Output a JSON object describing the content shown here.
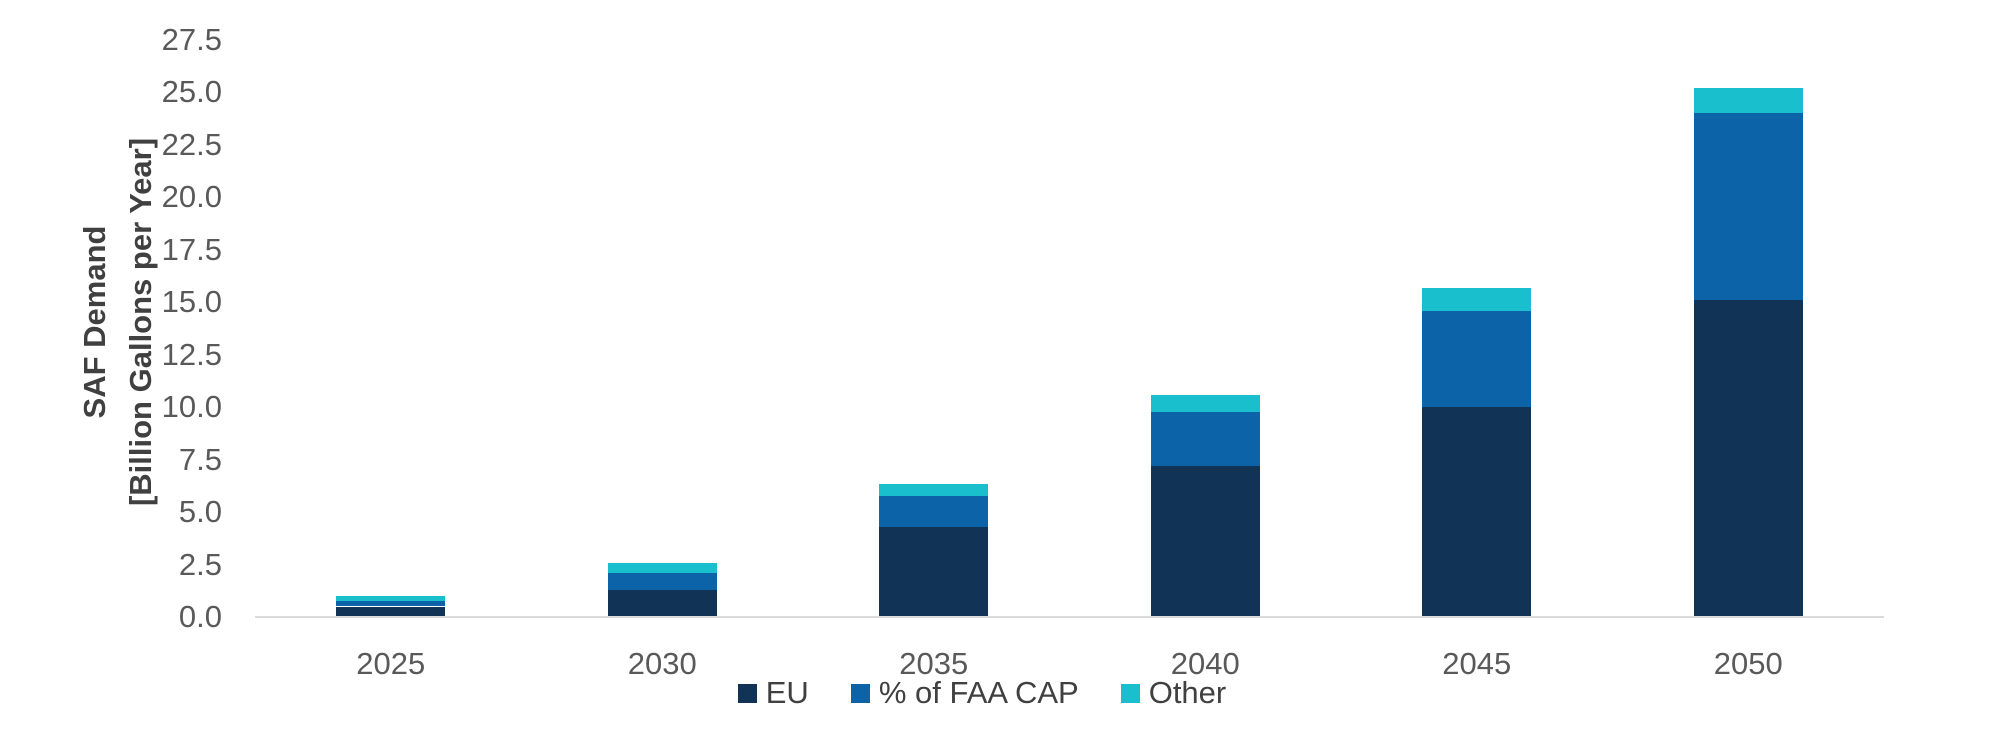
{
  "chart_data": {
    "type": "bar",
    "stacked": true,
    "title": "",
    "categories": [
      "2025",
      "2030",
      "2035",
      "2040",
      "2045",
      "2050"
    ],
    "series": [
      {
        "name": "EU",
        "color": "#113356",
        "values": [
          0.5,
          1.3,
          4.3,
          7.2,
          10.0,
          15.1
        ]
      },
      {
        "name": "% of FAA CAP",
        "color": "#0c63a8",
        "values": [
          0.25,
          0.8,
          1.45,
          2.55,
          4.6,
          8.9
        ]
      },
      {
        "name": "Other",
        "color": "#19bfcc",
        "values": [
          0.25,
          0.45,
          0.6,
          0.85,
          1.1,
          1.2
        ]
      }
    ],
    "stack_totals": [
      1.0,
      2.55,
      6.35,
      10.6,
      15.7,
      25.2
    ],
    "xlabel": "",
    "ylabel_line1": "SAF Demand",
    "ylabel_line2": "[Billion Gallons per Year]",
    "ylim": [
      0,
      27.5
    ],
    "ytick_step": 2.5,
    "ytick_labels": [
      "0.0",
      "2.5",
      "5.0",
      "7.5",
      "10.0",
      "12.5",
      "15.0",
      "17.5",
      "20.0",
      "22.5",
      "25.0",
      "27.5"
    ],
    "grid": false,
    "legend_position": "bottom",
    "legend_entries": [
      "EU",
      "% of FAA CAP",
      "Other"
    ]
  },
  "colors": {
    "background": "#ffffff",
    "axis_line": "#d9d9d9",
    "tick_text": "#595959",
    "title_text": "#404040",
    "legend_text": "#404040"
  }
}
